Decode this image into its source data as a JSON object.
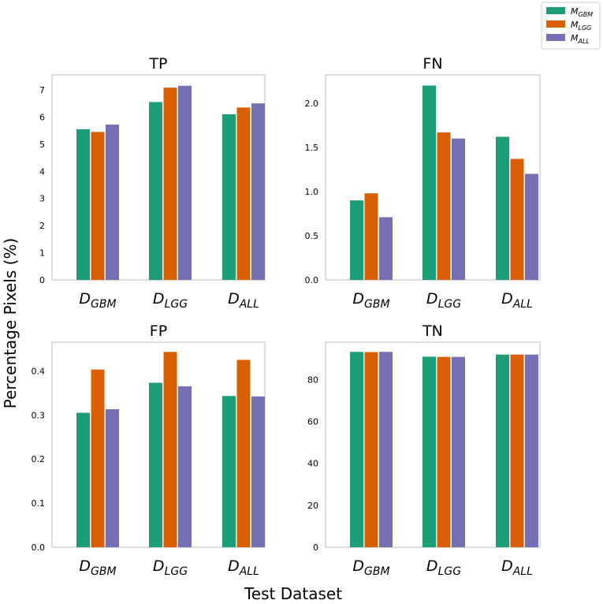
{
  "figure": {
    "ylabel": "Percentage Pixels (%)",
    "xlabel": "Test Dataset"
  },
  "colors": {
    "M_GBM": "#1b9e77",
    "M_LGG": "#d95f02",
    "M_ALL": "#7570b3",
    "frame": "#c8c8c8"
  },
  "legend": [
    {
      "base": "M",
      "sub": "GBM",
      "color_key": "M_GBM"
    },
    {
      "base": "M",
      "sub": "LGG",
      "color_key": "M_LGG"
    },
    {
      "base": "M",
      "sub": "ALL",
      "color_key": "M_ALL"
    }
  ],
  "chart_data": [
    {
      "type": "bar",
      "title": "TP",
      "categories": [
        {
          "base": "D",
          "sub": "GBM"
        },
        {
          "base": "D",
          "sub": "LGG"
        },
        {
          "base": "D",
          "sub": "ALL"
        }
      ],
      "series": [
        {
          "name": "M_GBM",
          "values": [
            5.55,
            6.55,
            6.1
          ]
        },
        {
          "name": "M_LGG",
          "values": [
            5.45,
            7.08,
            6.35
          ]
        },
        {
          "name": "M_ALL",
          "values": [
            5.72,
            7.15,
            6.5
          ]
        }
      ],
      "ylim": [
        0,
        7.55
      ],
      "yticks": [
        0,
        1,
        2,
        3,
        4,
        5,
        6,
        7
      ],
      "ytick_labels": [
        "0",
        "1",
        "2",
        "3",
        "4",
        "5",
        "6",
        "7"
      ]
    },
    {
      "type": "bar",
      "title": "FN",
      "categories": [
        {
          "base": "D",
          "sub": "GBM"
        },
        {
          "base": "D",
          "sub": "LGG"
        },
        {
          "base": "D",
          "sub": "ALL"
        }
      ],
      "series": [
        {
          "name": "M_GBM",
          "values": [
            0.9,
            2.2,
            1.62
          ]
        },
        {
          "name": "M_LGG",
          "values": [
            0.98,
            1.67,
            1.37
          ]
        },
        {
          "name": "M_ALL",
          "values": [
            0.71,
            1.6,
            1.2
          ]
        }
      ],
      "ylim": [
        0,
        2.32
      ],
      "yticks": [
        0,
        0.5,
        1.0,
        1.5,
        2.0
      ],
      "ytick_labels": [
        "0.0",
        "0.5",
        "1.0",
        "1.5",
        "2.0"
      ]
    },
    {
      "type": "bar",
      "title": "FP",
      "categories": [
        {
          "base": "D",
          "sub": "GBM"
        },
        {
          "base": "D",
          "sub": "LGG"
        },
        {
          "base": "D",
          "sub": "ALL"
        }
      ],
      "series": [
        {
          "name": "M_GBM",
          "values": [
            0.305,
            0.373,
            0.343
          ]
        },
        {
          "name": "M_LGG",
          "values": [
            0.403,
            0.443,
            0.425
          ]
        },
        {
          "name": "M_ALL",
          "values": [
            0.313,
            0.365,
            0.342
          ]
        }
      ],
      "ylim": [
        0,
        0.465
      ],
      "yticks": [
        0,
        0.1,
        0.2,
        0.3,
        0.4
      ],
      "ytick_labels": [
        "0.0",
        "0.1",
        "0.2",
        "0.3",
        "0.4"
      ]
    },
    {
      "type": "bar",
      "title": "TN",
      "categories": [
        {
          "base": "D",
          "sub": "GBM"
        },
        {
          "base": "D",
          "sub": "LGG"
        },
        {
          "base": "D",
          "sub": "ALL"
        }
      ],
      "series": [
        {
          "name": "M_GBM",
          "values": [
            93.2,
            90.9,
            91.9
          ]
        },
        {
          "name": "M_LGG",
          "values": [
            93.1,
            90.8,
            91.9
          ]
        },
        {
          "name": "M_ALL",
          "values": [
            93.2,
            90.8,
            91.9
          ]
        }
      ],
      "ylim": [
        0,
        97.8
      ],
      "yticks": [
        0,
        20,
        40,
        60,
        80
      ],
      "ytick_labels": [
        "0",
        "20",
        "40",
        "60",
        "80"
      ]
    }
  ]
}
